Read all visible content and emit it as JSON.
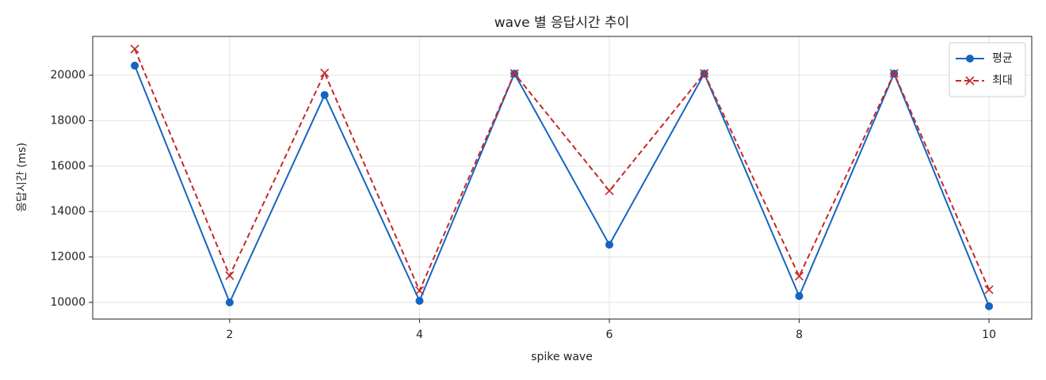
{
  "chart_data": {
    "type": "line",
    "title": "wave 별 응답시간 추이",
    "x_label": "spike wave",
    "y_label": "응답시간 (ms)",
    "x": [
      1,
      2,
      3,
      4,
      5,
      6,
      7,
      8,
      9,
      10
    ],
    "series": [
      {
        "name": "평균",
        "color": "#1565c0",
        "marker": "circle",
        "linestyle": "solid",
        "values": [
          20420,
          10000,
          19130,
          10070,
          20070,
          12540,
          20070,
          10280,
          20070,
          9830
        ]
      },
      {
        "name": "최대",
        "color": "#c62828",
        "marker": "x",
        "linestyle": "dashed",
        "values": [
          21150,
          11180,
          20100,
          10520,
          20080,
          14910,
          20080,
          11150,
          20080,
          10560
        ]
      }
    ],
    "xlim": [
      0.557,
      10.45
    ],
    "xticks": [
      2,
      4,
      6,
      8,
      10
    ],
    "ylim": [
      9268,
      21707
    ],
    "yticks": [
      10000,
      12000,
      14000,
      16000,
      18000,
      20000
    ],
    "grid": true,
    "legend": "upper right"
  }
}
